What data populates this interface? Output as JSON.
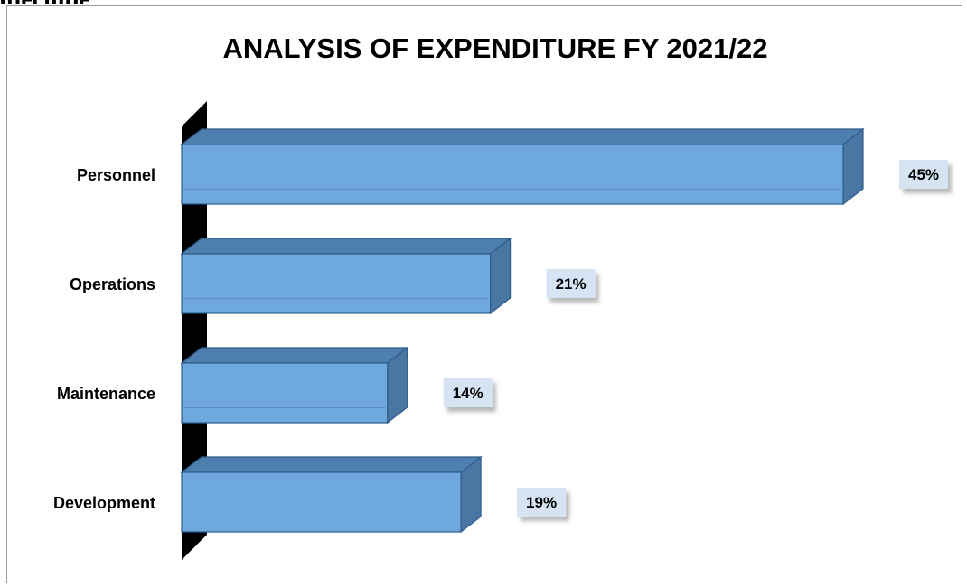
{
  "header_fragment": "ojecmpe",
  "chart_data": {
    "type": "bar",
    "orientation": "horizontal",
    "style": "3d",
    "title": "ANALYSIS OF EXPENDITURE FY 2021/22",
    "xlabel": "",
    "ylabel": "",
    "xlim": [
      0,
      45
    ],
    "grid": false,
    "legend": "none",
    "categories": [
      "Personnel",
      "Operations",
      "Maintenance",
      "Development"
    ],
    "values": [
      45,
      21,
      14,
      19
    ],
    "data_labels": [
      "45%",
      "21%",
      "14%",
      "19%"
    ],
    "colors": {
      "bar_front": "#6fa8dc",
      "bar_top": "#4e7fae",
      "bar_side": "#4a76a3",
      "bar_edge": "#2e5c8a",
      "wall": "#000000",
      "label_box": "#d5e3f2"
    }
  }
}
